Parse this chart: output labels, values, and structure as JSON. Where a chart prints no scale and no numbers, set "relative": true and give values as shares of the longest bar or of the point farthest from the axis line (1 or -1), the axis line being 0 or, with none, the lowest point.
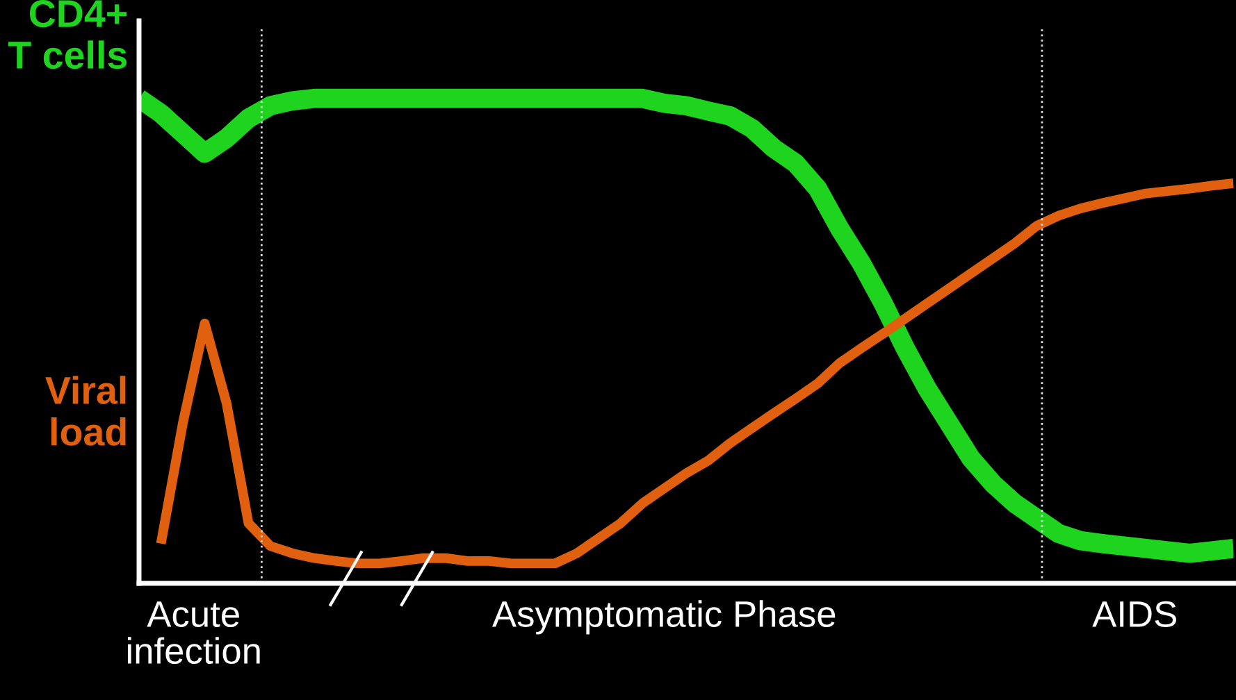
{
  "chart_data": {
    "type": "line",
    "relative": true,
    "legend": false,
    "categories": [
      null,
      null,
      null,
      null,
      null,
      null,
      null,
      null,
      null,
      null,
      null,
      null,
      null,
      null,
      null,
      null,
      null,
      null,
      null,
      null,
      null,
      null,
      null,
      null,
      null,
      null,
      null,
      null,
      null,
      null,
      null,
      null,
      null,
      null,
      null,
      null,
      null,
      null,
      null,
      null,
      null,
      null,
      null,
      null,
      null,
      null,
      null,
      null,
      null,
      null,
      null
    ],
    "series": [
      {
        "name": "CD4+\nT cells",
        "color": "#1ed41e",
        "values": [
          1,
          0.969,
          0.928,
          0.887,
          0.918,
          0.959,
          0.985,
          0.995,
          1,
          1,
          1,
          1,
          1,
          1,
          1,
          1,
          1,
          1,
          1,
          1,
          1,
          1,
          1,
          1,
          0.99,
          0.985,
          0.974,
          0.964,
          0.938,
          0.897,
          0.866,
          0.814,
          0.732,
          0.66,
          0.577,
          0.485,
          0.402,
          0.33,
          0.258,
          0.206,
          0.165,
          0.134,
          0.103,
          0.088,
          0.082,
          0.077,
          0.072,
          0.067,
          0.062,
          0.067,
          0.072
        ]
      },
      {
        "name": "Viral\nload",
        "color": "#e0600f",
        "values": [
          null,
          0.082,
          0.33,
          0.536,
          0.371,
          0.124,
          0.077,
          0.062,
          0.052,
          0.046,
          0.041,
          0.041,
          0.046,
          0.052,
          0.052,
          0.046,
          0.046,
          0.041,
          0.041,
          0.041,
          0.062,
          0.093,
          0.124,
          0.165,
          0.196,
          0.227,
          0.253,
          0.289,
          0.32,
          0.351,
          0.381,
          0.412,
          0.454,
          0.485,
          0.515,
          0.546,
          0.577,
          0.608,
          0.639,
          0.67,
          0.701,
          0.737,
          0.758,
          0.773,
          0.784,
          0.794,
          0.804,
          0.809,
          0.814,
          0.82,
          0.825
        ]
      }
    ],
    "annotations": [
      "Acute\ninfection",
      "Asymptomatic Phase",
      "AIDS"
    ]
  }
}
